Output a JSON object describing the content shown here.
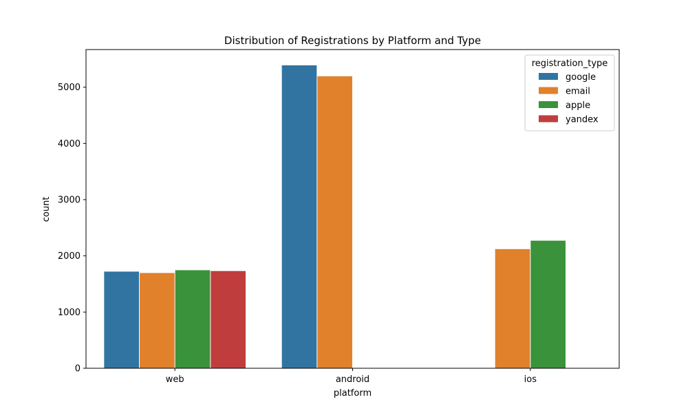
{
  "chart_data": {
    "type": "bar",
    "title": "Distribution of Registrations by Platform and Type",
    "xlabel": "platform",
    "ylabel": "count",
    "categories": [
      "web",
      "android",
      "ios"
    ],
    "ylim": [
      0,
      5670
    ],
    "yticks": [
      0,
      1000,
      2000,
      3000,
      4000,
      5000
    ],
    "grid": false,
    "legend": {
      "title": "registration_type",
      "placement": "top-right"
    },
    "series": [
      {
        "name": "google",
        "color": "#3274a1",
        "values": [
          1720,
          5390,
          null
        ]
      },
      {
        "name": "email",
        "color": "#e1812c",
        "values": [
          1695,
          5195,
          2120
        ]
      },
      {
        "name": "apple",
        "color": "#3a923a",
        "values": [
          1745,
          null,
          2270
        ]
      },
      {
        "name": "yandex",
        "color": "#c03d3e",
        "values": [
          1730,
          null,
          null
        ]
      }
    ]
  }
}
